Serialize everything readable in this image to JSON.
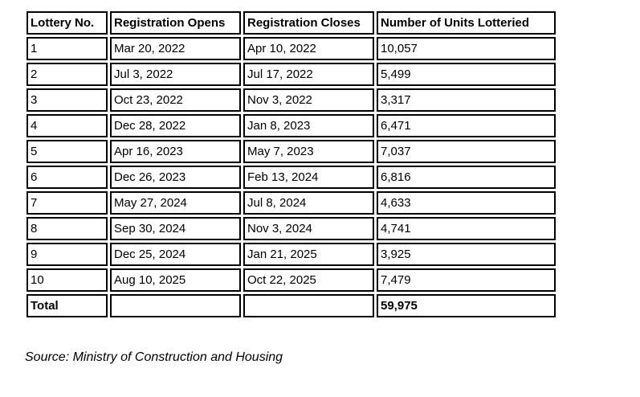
{
  "colors": {
    "background": "#ffffff",
    "border": "#000000",
    "text": "#000000"
  },
  "table": {
    "headers": [
      "Lottery No.",
      "Registration Opens",
      "Registration Closes",
      "Number of Units Lotteried"
    ],
    "rows": [
      [
        "1",
        "Mar 20, 2022",
        "Apr 10, 2022",
        "10,057"
      ],
      [
        "2",
        "Jul 3, 2022",
        "Jul 17, 2022",
        "5,499"
      ],
      [
        "3",
        "Oct 23, 2022",
        "Nov 3, 2022",
        "3,317"
      ],
      [
        "4",
        "Dec 28, 2022",
        "Jan 8, 2023",
        "6,471"
      ],
      [
        "5",
        "Apr 16, 2023",
        "May 7, 2023",
        "7,037"
      ],
      [
        "6",
        "Dec 26, 2023",
        "Feb 13, 2024",
        "6,816"
      ],
      [
        "7",
        "May 27, 2024",
        "Jul 8, 2024",
        "4,633"
      ],
      [
        "8",
        "Sep 30, 2024",
        "Nov 3, 2024",
        "4,741"
      ],
      [
        "9",
        "Dec 25, 2024",
        "Jan 21, 2025",
        "3,925"
      ],
      [
        "10",
        "Aug 10, 2025",
        "Oct 22, 2025",
        "7,479"
      ]
    ],
    "total": {
      "label": "Total",
      "opens": "",
      "closes": "",
      "units": "59,975"
    }
  },
  "source_note": "Source: Ministry of Construction and Housing"
}
